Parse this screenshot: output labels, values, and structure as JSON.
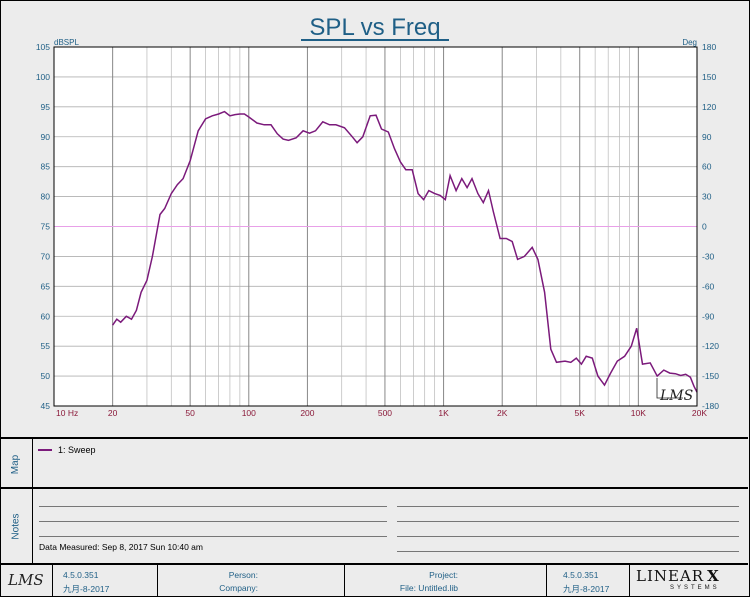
{
  "chart_data": {
    "type": "line",
    "title": "SPL vs Freq",
    "left_axis_unit": "dBSPL",
    "right_axis_unit": "Deg",
    "x_scale": "log",
    "xlim": [
      10,
      20000
    ],
    "ylim": [
      45,
      105
    ],
    "y2lim": [
      -180,
      180
    ],
    "x_tick_values": [
      10,
      20,
      50,
      100,
      200,
      500,
      1000,
      2000,
      5000,
      10000,
      20000
    ],
    "x_tick_labels": [
      "10  Hz",
      "20",
      "50",
      "100",
      "200",
      "500",
      "1K",
      "2K",
      "5K",
      "10K",
      "20K"
    ],
    "y_ticks": [
      45,
      50,
      55,
      60,
      65,
      70,
      75,
      80,
      85,
      90,
      95,
      100,
      105
    ],
    "y2_ticks": [
      -180,
      -150,
      -120,
      -90,
      -60,
      -30,
      0,
      30,
      60,
      90,
      120,
      150,
      180
    ],
    "grid": true,
    "reference_line": {
      "y2": 0,
      "color": "#e8a0e8"
    },
    "series": [
      {
        "name": "1: Sweep",
        "color": "#7b1a7b",
        "points": [
          [
            20,
            58.5
          ],
          [
            21,
            59.5
          ],
          [
            22,
            59
          ],
          [
            23.5,
            60
          ],
          [
            25,
            59.5
          ],
          [
            26.5,
            61
          ],
          [
            28,
            64
          ],
          [
            30,
            66
          ],
          [
            32,
            70
          ],
          [
            35,
            77
          ],
          [
            37,
            78
          ],
          [
            40,
            80.5
          ],
          [
            43,
            82
          ],
          [
            46,
            83
          ],
          [
            50,
            86
          ],
          [
            55,
            91
          ],
          [
            60,
            93
          ],
          [
            65,
            93.5
          ],
          [
            70,
            93.8
          ],
          [
            75,
            94.2
          ],
          [
            80,
            93.5
          ],
          [
            85,
            93.7
          ],
          [
            90,
            93.8
          ],
          [
            95,
            93.8
          ],
          [
            100,
            93.3
          ],
          [
            110,
            92.3
          ],
          [
            120,
            92
          ],
          [
            130,
            92
          ],
          [
            140,
            90.5
          ],
          [
            150,
            89.6
          ],
          [
            160,
            89.4
          ],
          [
            175,
            89.8
          ],
          [
            190,
            91
          ],
          [
            205,
            90.6
          ],
          [
            220,
            91
          ],
          [
            240,
            92.5
          ],
          [
            260,
            92
          ],
          [
            280,
            92
          ],
          [
            310,
            91.5
          ],
          [
            340,
            90
          ],
          [
            360,
            89
          ],
          [
            385,
            90
          ],
          [
            420,
            93.5
          ],
          [
            450,
            93.6
          ],
          [
            480,
            91.3
          ],
          [
            520,
            90.8
          ],
          [
            560,
            88
          ],
          [
            600,
            85.8
          ],
          [
            640,
            84.5
          ],
          [
            690,
            84.5
          ],
          [
            740,
            80.5
          ],
          [
            790,
            79.5
          ],
          [
            840,
            81
          ],
          [
            900,
            80.5
          ],
          [
            960,
            80.2
          ],
          [
            1020,
            79.5
          ],
          [
            1080,
            83.5
          ],
          [
            1160,
            81
          ],
          [
            1240,
            83
          ],
          [
            1320,
            81.5
          ],
          [
            1400,
            83
          ],
          [
            1500,
            80.5
          ],
          [
            1600,
            79
          ],
          [
            1700,
            81
          ],
          [
            1800,
            77.5
          ],
          [
            1950,
            73
          ],
          [
            2100,
            73
          ],
          [
            2250,
            72.5
          ],
          [
            2400,
            69.5
          ],
          [
            2600,
            70
          ],
          [
            2850,
            71.5
          ],
          [
            3050,
            69.5
          ],
          [
            3300,
            64
          ],
          [
            3550,
            54.5
          ],
          [
            3800,
            52.3
          ],
          [
            4200,
            52.5
          ],
          [
            4500,
            52.3
          ],
          [
            4800,
            53
          ],
          [
            5100,
            52
          ],
          [
            5400,
            53.3
          ],
          [
            5800,
            53
          ],
          [
            6200,
            50
          ],
          [
            6700,
            48.5
          ],
          [
            7200,
            50.5
          ],
          [
            7800,
            52.5
          ],
          [
            8500,
            53.3
          ],
          [
            9200,
            55
          ],
          [
            9800,
            58
          ],
          [
            10500,
            52
          ],
          [
            11500,
            52.2
          ],
          [
            12500,
            50
          ],
          [
            13500,
            51
          ],
          [
            14500,
            50.5
          ],
          [
            15500,
            50.4
          ],
          [
            16500,
            50.1
          ],
          [
            17500,
            50.3
          ],
          [
            18500,
            49.8
          ],
          [
            19300,
            48.3
          ],
          [
            20000,
            47.3
          ]
        ]
      }
    ]
  },
  "panels": {
    "map_label": "Map",
    "notes_label": "Notes",
    "legend_item": "1: Sweep",
    "data_measured": "Data Measured: Sep 8, 2017 Sun 10:40 am"
  },
  "footer": {
    "logo": "LMS",
    "version_left": "4.5.0.351",
    "date_left": "九月-8-2017",
    "person_label": "Person:",
    "company_label": "Company:",
    "project_label": "Project:",
    "file_label": "File: Untitled.lib",
    "version_right": "4.5.0.351",
    "date_right": "九月-8-2017",
    "brand_top": "LINEAR",
    "brand_x": "X",
    "brand_bottom": "SYSTEMS"
  },
  "colors": {
    "title": "#1f5f86",
    "axis_text": "#1f5f86",
    "x_tick_text": "#8b1a3a",
    "curve": "#7b1a7b",
    "zero_line": "#e8a0e8"
  }
}
